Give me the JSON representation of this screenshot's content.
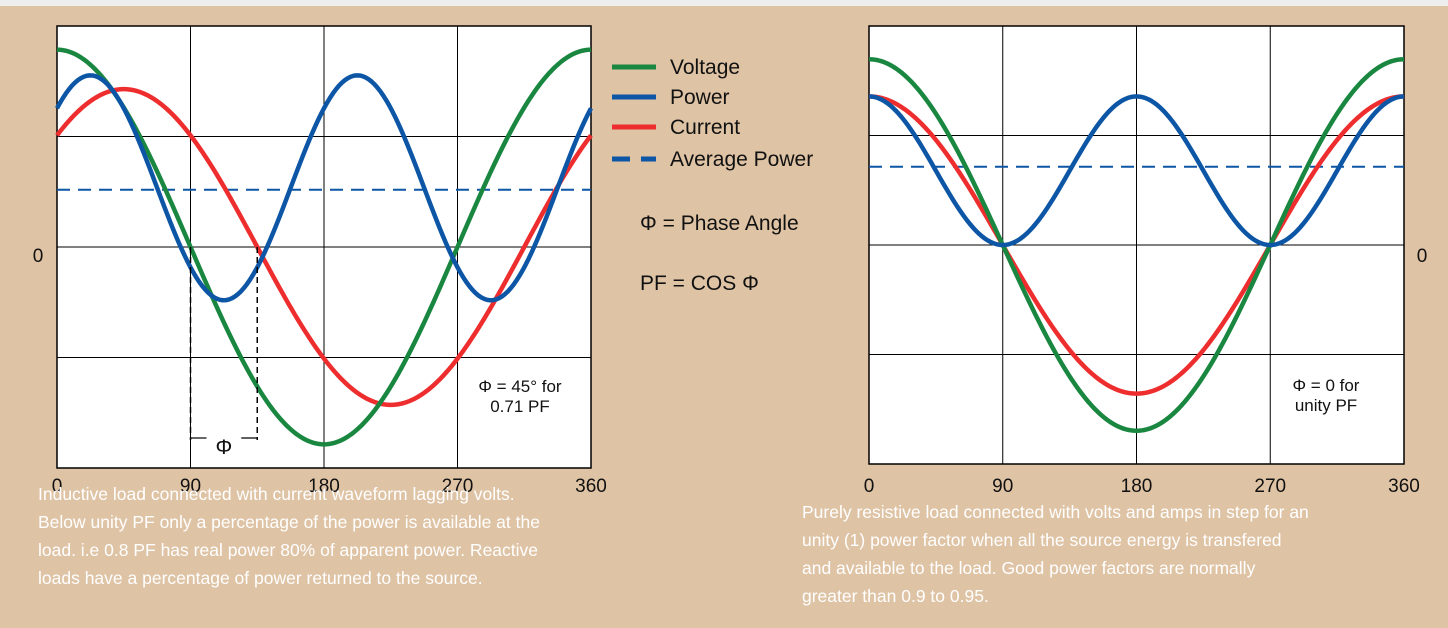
{
  "colors": {
    "voltage": "#1a8741",
    "power": "#0d56a6",
    "current": "#ee2e2e",
    "average_power": "#0d56a6",
    "background": "#dfc3a5",
    "plot_background": "#ffffff",
    "caption_text": "#ffffff"
  },
  "legend": {
    "items": [
      {
        "label": "Voltage",
        "color": "#1a8741",
        "style": "solid"
      },
      {
        "label": "Power",
        "color": "#0d56a6",
        "style": "solid"
      },
      {
        "label": "Current",
        "color": "#ee2e2e",
        "style": "solid"
      },
      {
        "label": "Average Power",
        "color": "#0d56a6",
        "style": "dashed"
      }
    ],
    "phase_def": "Φ = Phase Angle",
    "pf_def": "PF = COS Φ"
  },
  "chart_data": [
    {
      "type": "line",
      "x_ticks": [
        0,
        90,
        180,
        270,
        360
      ],
      "xlim": [
        0,
        360
      ],
      "ylim": [
        -1.12,
        1.12
      ],
      "y_tick_label": "0",
      "grid": true,
      "phase_angle_deg": 45,
      "series": [
        {
          "name": "Voltage",
          "function": "cos(x)"
        },
        {
          "name": "Current",
          "function": "0.8*cos(x-45)"
        },
        {
          "name": "Power",
          "function": "0.57*cos(2x-45)+0.3"
        },
        {
          "name": "Average Power",
          "value": 0.29
        }
      ],
      "marker_label": "Φ",
      "annotation": [
        "Φ = 45° for",
        "0.71 PF"
      ]
    },
    {
      "type": "line",
      "x_ticks": [
        0,
        90,
        180,
        270,
        360
      ],
      "xlim": [
        0,
        360
      ],
      "ylim": [
        -1.12,
        1.12
      ],
      "y_tick_label": "0",
      "grid": true,
      "phase_angle_deg": 0,
      "series": [
        {
          "name": "Voltage",
          "function": "0.95*cos(x)"
        },
        {
          "name": "Current",
          "function": "0.76*cos(x)"
        },
        {
          "name": "Power",
          "function": "0.38*cos(2x)+0.38"
        },
        {
          "name": "Average Power",
          "value": 0.4
        }
      ],
      "annotation": [
        "Φ = 0 for",
        "unity PF"
      ]
    }
  ],
  "captions": {
    "left": [
      "Inductive load connected with current waveform lagging volts.",
      "Below unity PF only a percentage of the power is available at the",
      "load. i.e 0.8 PF  has real power 80% of apparent power. Reactive",
      "loads have a percentage of power returned to the source."
    ],
    "right": [
      "Purely resistive load connected with volts and amps in step for an",
      "unity (1) power factor when all the source energy is transfered",
      "and available to the load.  Good power factors are normally",
      "greater than 0.9 to 0.95."
    ]
  }
}
